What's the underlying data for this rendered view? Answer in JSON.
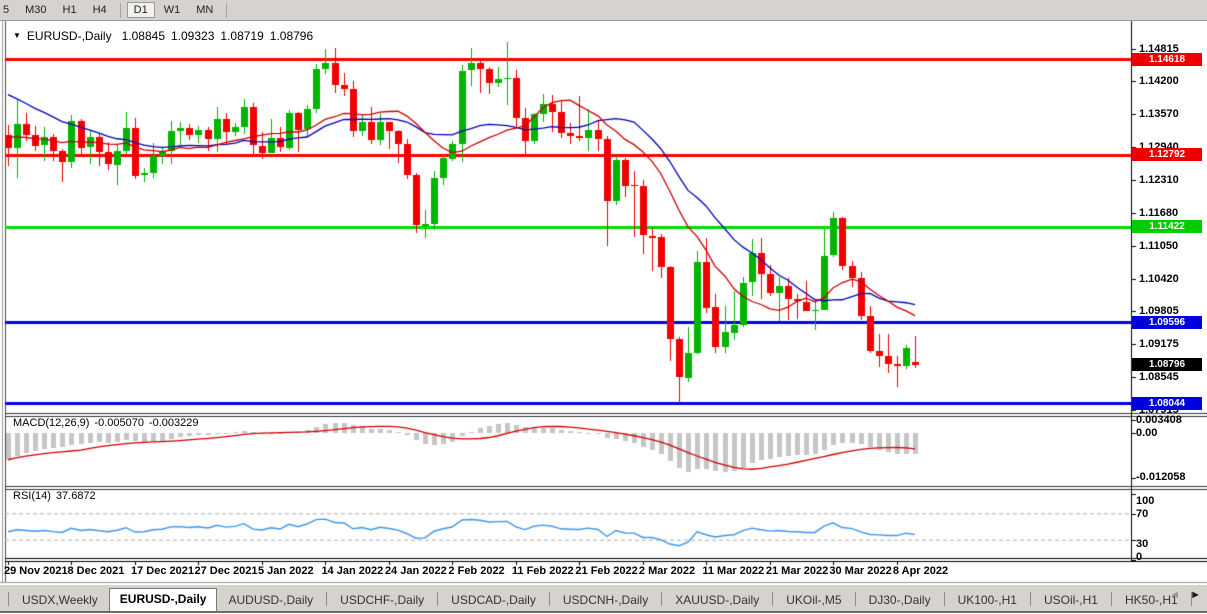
{
  "toolbar": {
    "timeframes": [
      "5",
      "M30",
      "H1",
      "H4",
      "D1",
      "W1",
      "MN"
    ],
    "active": "D1"
  },
  "title": {
    "dropdown_icon": "▼",
    "symbol": "EURUSD-,Daily",
    "open": "1.08845",
    "high": "1.09323",
    "low": "1.08719",
    "close": "1.08796"
  },
  "indicators": {
    "macd": {
      "name": "MACD(12,26,9)",
      "main_value": "-0.005070",
      "signal_value": "-0.003229",
      "scale_max": "0.003408",
      "scale_zero": "0.00",
      "scale_min": "-0.012058"
    },
    "rsi": {
      "name": "RSI(14)",
      "value": "37.6872",
      "scale": [
        "100",
        "70",
        "30",
        "0"
      ]
    }
  },
  "price_axis": {
    "ticks": [
      "1.14815",
      "1.14200",
      "1.13570",
      "1.12940",
      "1.12310",
      "1.11680",
      "1.11050",
      "1.10420",
      "1.09805",
      "1.09175",
      "1.08545",
      "1.07915"
    ],
    "badges": [
      {
        "value": "1.14618",
        "bg": "#ee0000"
      },
      {
        "value": "1.12792",
        "bg": "#ee0000"
      },
      {
        "value": "1.11422",
        "bg": "#00cc00"
      },
      {
        "value": "1.09596",
        "bg": "#0000dd"
      },
      {
        "value": "1.08796",
        "bg": "#000000"
      },
      {
        "value": "1.08044",
        "bg": "#0000dd"
      }
    ]
  },
  "date_axis": {
    "labels": [
      "29 Nov 2021",
      "8 Dec 2021",
      "17 Dec 2021",
      "27 Dec 2021",
      "5 Jan 2022",
      "14 Jan 2022",
      "24 Jan 2022",
      "2 Feb 2022",
      "11 Feb 2022",
      "21 Feb 2022",
      "2 Mar 2022",
      "11 Mar 2022",
      "21 Mar 2022",
      "30 Mar 2022",
      "8 Apr 2022"
    ]
  },
  "tabs": {
    "items": [
      "USDX,Weekly",
      "EURUSD-,Daily",
      "AUDUSD-,Daily",
      "USDCHF-,Daily",
      "USDCAD-,Daily",
      "USDCNH-,Daily",
      "XAUUSD-,Daily",
      "UKOil-,M5",
      "DJ30-,Daily",
      "UK100-,H1",
      "USOil-,H1",
      "HK50-,H1"
    ],
    "active": "EURUSD-,Daily",
    "scroll_left_icon": "◄",
    "scroll_right_icon": "►"
  },
  "chart_data": {
    "type": "candlestick",
    "symbol": "EURUSD",
    "timeframe": "Daily",
    "last_ohlc": {
      "open": 1.08845,
      "high": 1.09323,
      "low": 1.08719,
      "close": 1.08796
    },
    "price_range": {
      "top": 1.1518,
      "bottom": 1.0788
    },
    "horizontal_lines": [
      {
        "price": 1.14618,
        "color": "#ff0000"
      },
      {
        "price": 1.12792,
        "color": "#ff0000"
      },
      {
        "price": 1.11422,
        "color": "#00dd00"
      },
      {
        "price": 1.09596,
        "color": "#0000e6"
      },
      {
        "price": 1.08044,
        "color": "#0000e6"
      }
    ],
    "candle_colors": {
      "up": "#00b400",
      "down": "#f20000"
    },
    "moving_averages": [
      {
        "color": "#0000bb",
        "style": "slow"
      },
      {
        "color": "#cc0000",
        "style": "fast"
      }
    ],
    "macd": {
      "histogram_color": "#c6c6c6",
      "signal_color": "#d40000",
      "range": {
        "max": 0.003408,
        "min": -0.012058
      },
      "current_main": -0.00507,
      "current_signal": -0.003229
    },
    "rsi": {
      "line_color": "#3d96ee",
      "current": 37.6872,
      "range": [
        0,
        100
      ],
      "levels": [
        30,
        70
      ]
    },
    "candles": [
      [
        1.1317,
        1.1336,
        1.1258,
        1.1293
      ],
      [
        1.1293,
        1.1387,
        1.1236,
        1.1339
      ],
      [
        1.1339,
        1.136,
        1.1305,
        1.1318
      ],
      [
        1.1318,
        1.1334,
        1.1287,
        1.1297
      ],
      [
        1.1297,
        1.1333,
        1.1267,
        1.1313
      ],
      [
        1.1313,
        1.132,
        1.1268,
        1.1286
      ],
      [
        1.1286,
        1.129,
        1.1228,
        1.1265
      ],
      [
        1.1265,
        1.1356,
        1.1254,
        1.1344
      ],
      [
        1.1344,
        1.1347,
        1.1277,
        1.1293
      ],
      [
        1.1293,
        1.1325,
        1.1262,
        1.1313
      ],
      [
        1.1313,
        1.132,
        1.1259,
        1.1284
      ],
      [
        1.1284,
        1.1304,
        1.125,
        1.1261
      ],
      [
        1.1261,
        1.1298,
        1.1221,
        1.1287
      ],
      [
        1.1287,
        1.1361,
        1.1281,
        1.1331
      ],
      [
        1.1331,
        1.1349,
        1.1234,
        1.124
      ],
      [
        1.124,
        1.1255,
        1.1228,
        1.1244
      ],
      [
        1.1244,
        1.1303,
        1.1236,
        1.1277
      ],
      [
        1.1277,
        1.1295,
        1.1261,
        1.1287
      ],
      [
        1.1287,
        1.1345,
        1.1262,
        1.1325
      ],
      [
        1.1325,
        1.1343,
        1.1299,
        1.133
      ],
      [
        1.133,
        1.1338,
        1.1308,
        1.1317
      ],
      [
        1.1317,
        1.1334,
        1.1302,
        1.1326
      ],
      [
        1.1326,
        1.1333,
        1.1287,
        1.1309
      ],
      [
        1.1309,
        1.137,
        1.1284,
        1.1348
      ],
      [
        1.1348,
        1.136,
        1.1299,
        1.1323
      ],
      [
        1.1323,
        1.134,
        1.1315,
        1.1332
      ],
      [
        1.1332,
        1.1387,
        1.1319,
        1.137
      ],
      [
        1.137,
        1.1379,
        1.1279,
        1.1297
      ],
      [
        1.1297,
        1.1323,
        1.1272,
        1.1284
      ],
      [
        1.1284,
        1.1347,
        1.1283,
        1.1312
      ],
      [
        1.1312,
        1.1333,
        1.1285,
        1.1294
      ],
      [
        1.1294,
        1.1366,
        1.1289,
        1.136
      ],
      [
        1.136,
        1.1362,
        1.1284,
        1.1328
      ],
      [
        1.1328,
        1.1374,
        1.1315,
        1.1367
      ],
      [
        1.1367,
        1.1453,
        1.136,
        1.1444
      ],
      [
        1.1444,
        1.1482,
        1.1434,
        1.1455
      ],
      [
        1.1455,
        1.1483,
        1.1397,
        1.1413
      ],
      [
        1.1413,
        1.1436,
        1.1391,
        1.1406
      ],
      [
        1.1406,
        1.1421,
        1.1314,
        1.1325
      ],
      [
        1.1325,
        1.1357,
        1.1316,
        1.1342
      ],
      [
        1.1342,
        1.137,
        1.13,
        1.1308
      ],
      [
        1.1308,
        1.136,
        1.1299,
        1.1342
      ],
      [
        1.1342,
        1.1343,
        1.129,
        1.1325
      ],
      [
        1.1325,
        1.1327,
        1.1263,
        1.13
      ],
      [
        1.13,
        1.131,
        1.1234,
        1.124
      ],
      [
        1.124,
        1.1244,
        1.1131,
        1.1144
      ],
      [
        1.1144,
        1.1174,
        1.1121,
        1.1148
      ],
      [
        1.1148,
        1.1248,
        1.1135,
        1.1235
      ],
      [
        1.1235,
        1.1279,
        1.1221,
        1.1273
      ],
      [
        1.1273,
        1.1305,
        1.1267,
        1.1301
      ],
      [
        1.1301,
        1.1452,
        1.1266,
        1.144
      ],
      [
        1.144,
        1.1483,
        1.1411,
        1.1454
      ],
      [
        1.1454,
        1.1458,
        1.1398,
        1.1443
      ],
      [
        1.1443,
        1.1448,
        1.1396,
        1.1417
      ],
      [
        1.1417,
        1.1448,
        1.141,
        1.1424
      ],
      [
        1.1424,
        1.1495,
        1.1375,
        1.1426
      ],
      [
        1.1426,
        1.1441,
        1.133,
        1.1349
      ],
      [
        1.1349,
        1.1368,
        1.1277,
        1.1306
      ],
      [
        1.1306,
        1.1359,
        1.1301,
        1.1358
      ],
      [
        1.1358,
        1.1395,
        1.1342,
        1.1377
      ],
      [
        1.1377,
        1.1393,
        1.1324,
        1.1361
      ],
      [
        1.1361,
        1.1384,
        1.1312,
        1.1321
      ],
      [
        1.1321,
        1.134,
        1.13,
        1.1315
      ],
      [
        1.1315,
        1.1391,
        1.1305,
        1.1311
      ],
      [
        1.1311,
        1.1367,
        1.1287,
        1.1327
      ],
      [
        1.1327,
        1.1344,
        1.1286,
        1.1309
      ],
      [
        1.1309,
        1.1315,
        1.1106,
        1.1191
      ],
      [
        1.1191,
        1.1277,
        1.1184,
        1.127
      ],
      [
        1.127,
        1.1274,
        1.1198,
        1.1221
      ],
      [
        1.1221,
        1.1249,
        1.1122,
        1.1219
      ],
      [
        1.1219,
        1.1232,
        1.109,
        1.1125
      ],
      [
        1.1125,
        1.1139,
        1.1058,
        1.1122
      ],
      [
        1.1122,
        1.1128,
        1.1045,
        1.1065
      ],
      [
        1.1065,
        1.1067,
        1.0885,
        1.0927
      ],
      [
        1.0927,
        1.0931,
        1.0806,
        1.0854
      ],
      [
        1.0854,
        1.0951,
        1.0846,
        1.0901
      ],
      [
        1.0901,
        1.1095,
        1.0899,
        1.1075
      ],
      [
        1.1075,
        1.1121,
        1.0977,
        1.0988
      ],
      [
        1.0988,
        1.1014,
        1.09,
        1.0911
      ],
      [
        1.0911,
        1.099,
        1.0901,
        1.094
      ],
      [
        1.094,
        1.102,
        1.0925,
        1.0955
      ],
      [
        1.0955,
        1.1046,
        1.095,
        1.1035
      ],
      [
        1.1035,
        1.1119,
        1.1009,
        1.1091
      ],
      [
        1.1091,
        1.112,
        1.1003,
        1.1051
      ],
      [
        1.1051,
        1.1069,
        1.1009,
        1.1015
      ],
      [
        1.1015,
        1.1046,
        1.0962,
        1.1028
      ],
      [
        1.1028,
        1.1044,
        1.0963,
        1.1003
      ],
      [
        1.1003,
        1.1014,
        1.0965,
        1.0999
      ],
      [
        1.0999,
        1.1039,
        1.0981,
        1.0982
      ],
      [
        1.0982,
        1.1,
        1.0944,
        1.0983
      ],
      [
        1.0983,
        1.1137,
        1.0982,
        1.1087
      ],
      [
        1.1087,
        1.1171,
        1.1084,
        1.1158
      ],
      [
        1.1158,
        1.116,
        1.106,
        1.1067
      ],
      [
        1.1067,
        1.1076,
        1.1027,
        1.1045
      ],
      [
        1.1045,
        1.1055,
        1.0963,
        1.0972
      ],
      [
        1.0972,
        1.0991,
        1.09,
        1.0905
      ],
      [
        1.0905,
        1.0938,
        1.0874,
        1.0895
      ],
      [
        1.0895,
        1.0938,
        1.0863,
        1.0879
      ],
      [
        1.0879,
        1.0895,
        1.0836,
        1.0876
      ],
      [
        1.0876,
        1.0916,
        1.0871,
        1.091
      ],
      [
        1.08845,
        1.09323,
        1.08719,
        1.08796
      ]
    ]
  }
}
